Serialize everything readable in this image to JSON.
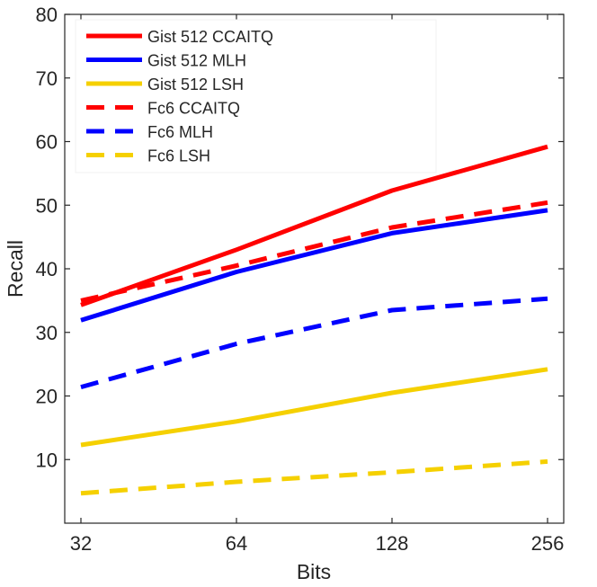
{
  "chart_data": {
    "type": "line",
    "xlabel": "Bits",
    "ylabel": "Recall",
    "x": [
      32,
      64,
      128,
      256
    ],
    "x_tick_labels": [
      "32",
      "64",
      "128",
      "256"
    ],
    "x_scale": "log2",
    "xlim": [
      32,
      256
    ],
    "ylim": [
      0,
      80
    ],
    "y_ticks": [
      10,
      20,
      30,
      40,
      50,
      60,
      70,
      80
    ],
    "y_tick_labels": [
      "10",
      "20",
      "30",
      "40",
      "50",
      "60",
      "70",
      "80"
    ],
    "grid": false,
    "legend_position": "top-left",
    "series": [
      {
        "name": "Gist 512 CCAITQ",
        "color": "#ff0000",
        "style": "solid",
        "values": [
          34.3,
          43.0,
          52.3,
          59.2
        ]
      },
      {
        "name": "Gist 512 MLH",
        "color": "#0000ff",
        "style": "solid",
        "values": [
          31.9,
          39.5,
          45.6,
          49.2
        ]
      },
      {
        "name": "Gist 512 LSH",
        "color": "#f5d000",
        "style": "solid",
        "values": [
          12.3,
          16.0,
          20.5,
          24.2
        ]
      },
      {
        "name": "Fc6 CCAITQ",
        "color": "#ff0000",
        "style": "dashed",
        "values": [
          35.0,
          40.5,
          46.5,
          50.4
        ]
      },
      {
        "name": "Fc6 MLH",
        "color": "#0000ff",
        "style": "dashed",
        "values": [
          21.4,
          28.2,
          33.5,
          35.3
        ]
      },
      {
        "name": "Fc6 LSH",
        "color": "#f5d000",
        "style": "dashed",
        "values": [
          4.7,
          6.5,
          8.0,
          9.7
        ]
      }
    ]
  }
}
